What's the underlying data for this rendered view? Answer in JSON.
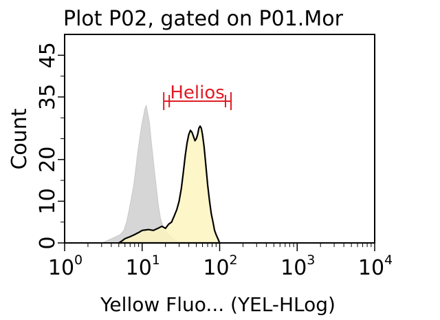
{
  "chart_data": {
    "type": "area",
    "title": "Plot P02, gated on P01.Mor",
    "xlabel": "Yellow Fluo... (YEL-HLog)",
    "ylabel": "Count",
    "x_scale": "log",
    "xlim": [
      1,
      10000
    ],
    "ylim": [
      0,
      50
    ],
    "x_ticks": [
      {
        "value": 1,
        "label": "10",
        "exp": "0"
      },
      {
        "value": 10,
        "label": "10",
        "exp": "1"
      },
      {
        "value": 100,
        "label": "10",
        "exp": "2"
      },
      {
        "value": 1000,
        "label": "10",
        "exp": "3"
      },
      {
        "value": 10000,
        "label": "10",
        "exp": "4"
      }
    ],
    "y_ticks": [
      {
        "value": 0,
        "label": "0"
      },
      {
        "value": 5,
        "label": ""
      },
      {
        "value": 10,
        "label": "10"
      },
      {
        "value": 15,
        "label": ""
      },
      {
        "value": 20,
        "label": "20"
      },
      {
        "value": 25,
        "label": ""
      },
      {
        "value": 30,
        "label": ""
      },
      {
        "value": 35,
        "label": "35"
      },
      {
        "value": 40,
        "label": ""
      },
      {
        "value": 45,
        "label": "45"
      }
    ],
    "gate": {
      "label": "Helios",
      "color": "#e01b24",
      "x_start": 19,
      "x_end": 140,
      "y": 34
    },
    "series": [
      {
        "fill": "#d6d6d6",
        "stroke": "#c8c8c8",
        "points": [
          [
            3.0,
            0
          ],
          [
            3.5,
            0.5
          ],
          [
            4.0,
            1
          ],
          [
            4.6,
            1.5
          ],
          [
            5.2,
            2
          ],
          [
            5.8,
            3
          ],
          [
            6.3,
            5
          ],
          [
            6.8,
            8
          ],
          [
            7.3,
            11
          ],
          [
            7.8,
            14
          ],
          [
            8.3,
            18
          ],
          [
            8.8,
            22
          ],
          [
            9.3,
            25
          ],
          [
            9.8,
            28
          ],
          [
            10.3,
            30
          ],
          [
            10.8,
            32
          ],
          [
            11.3,
            33
          ],
          [
            11.8,
            31
          ],
          [
            12.4,
            29
          ],
          [
            13.0,
            25
          ],
          [
            13.7,
            21
          ],
          [
            14.5,
            17
          ],
          [
            15.3,
            13
          ],
          [
            16.2,
            9
          ],
          [
            17.2,
            6
          ],
          [
            18.5,
            4
          ],
          [
            20,
            3
          ],
          [
            22,
            2
          ],
          [
            25,
            1
          ],
          [
            30,
            0
          ]
        ]
      },
      {
        "fill": "#fbf4bf",
        "stroke": "#000000",
        "points": [
          [
            5.0,
            0
          ],
          [
            5.5,
            0.5
          ],
          [
            6.0,
            1
          ],
          [
            7.0,
            1.5
          ],
          [
            8.0,
            2
          ],
          [
            9.0,
            2.5
          ],
          [
            10.0,
            3
          ],
          [
            12.0,
            3.2
          ],
          [
            14.0,
            3
          ],
          [
            16.0,
            3.5
          ],
          [
            18.0,
            4
          ],
          [
            20.0,
            3.5
          ],
          [
            22.0,
            4.5
          ],
          [
            24.0,
            5
          ],
          [
            26.0,
            6.5
          ],
          [
            28.0,
            8
          ],
          [
            30.0,
            10
          ],
          [
            32.0,
            13
          ],
          [
            34.0,
            17
          ],
          [
            36.0,
            21
          ],
          [
            38.0,
            24
          ],
          [
            40.0,
            26
          ],
          [
            42.0,
            27
          ],
          [
            44.0,
            26.5
          ],
          [
            46.0,
            25.5
          ],
          [
            48.0,
            24.5
          ],
          [
            50.0,
            25
          ],
          [
            52.0,
            26
          ],
          [
            54.0,
            27.5
          ],
          [
            56.0,
            28
          ],
          [
            58.0,
            27.5
          ],
          [
            60.0,
            26
          ],
          [
            63.0,
            23
          ],
          [
            66.0,
            19
          ],
          [
            70.0,
            14
          ],
          [
            74.0,
            10
          ],
          [
            78.0,
            7
          ],
          [
            82.0,
            5
          ],
          [
            86.0,
            3
          ],
          [
            90.0,
            2
          ],
          [
            95.0,
            1
          ],
          [
            100.0,
            0
          ]
        ]
      }
    ]
  }
}
